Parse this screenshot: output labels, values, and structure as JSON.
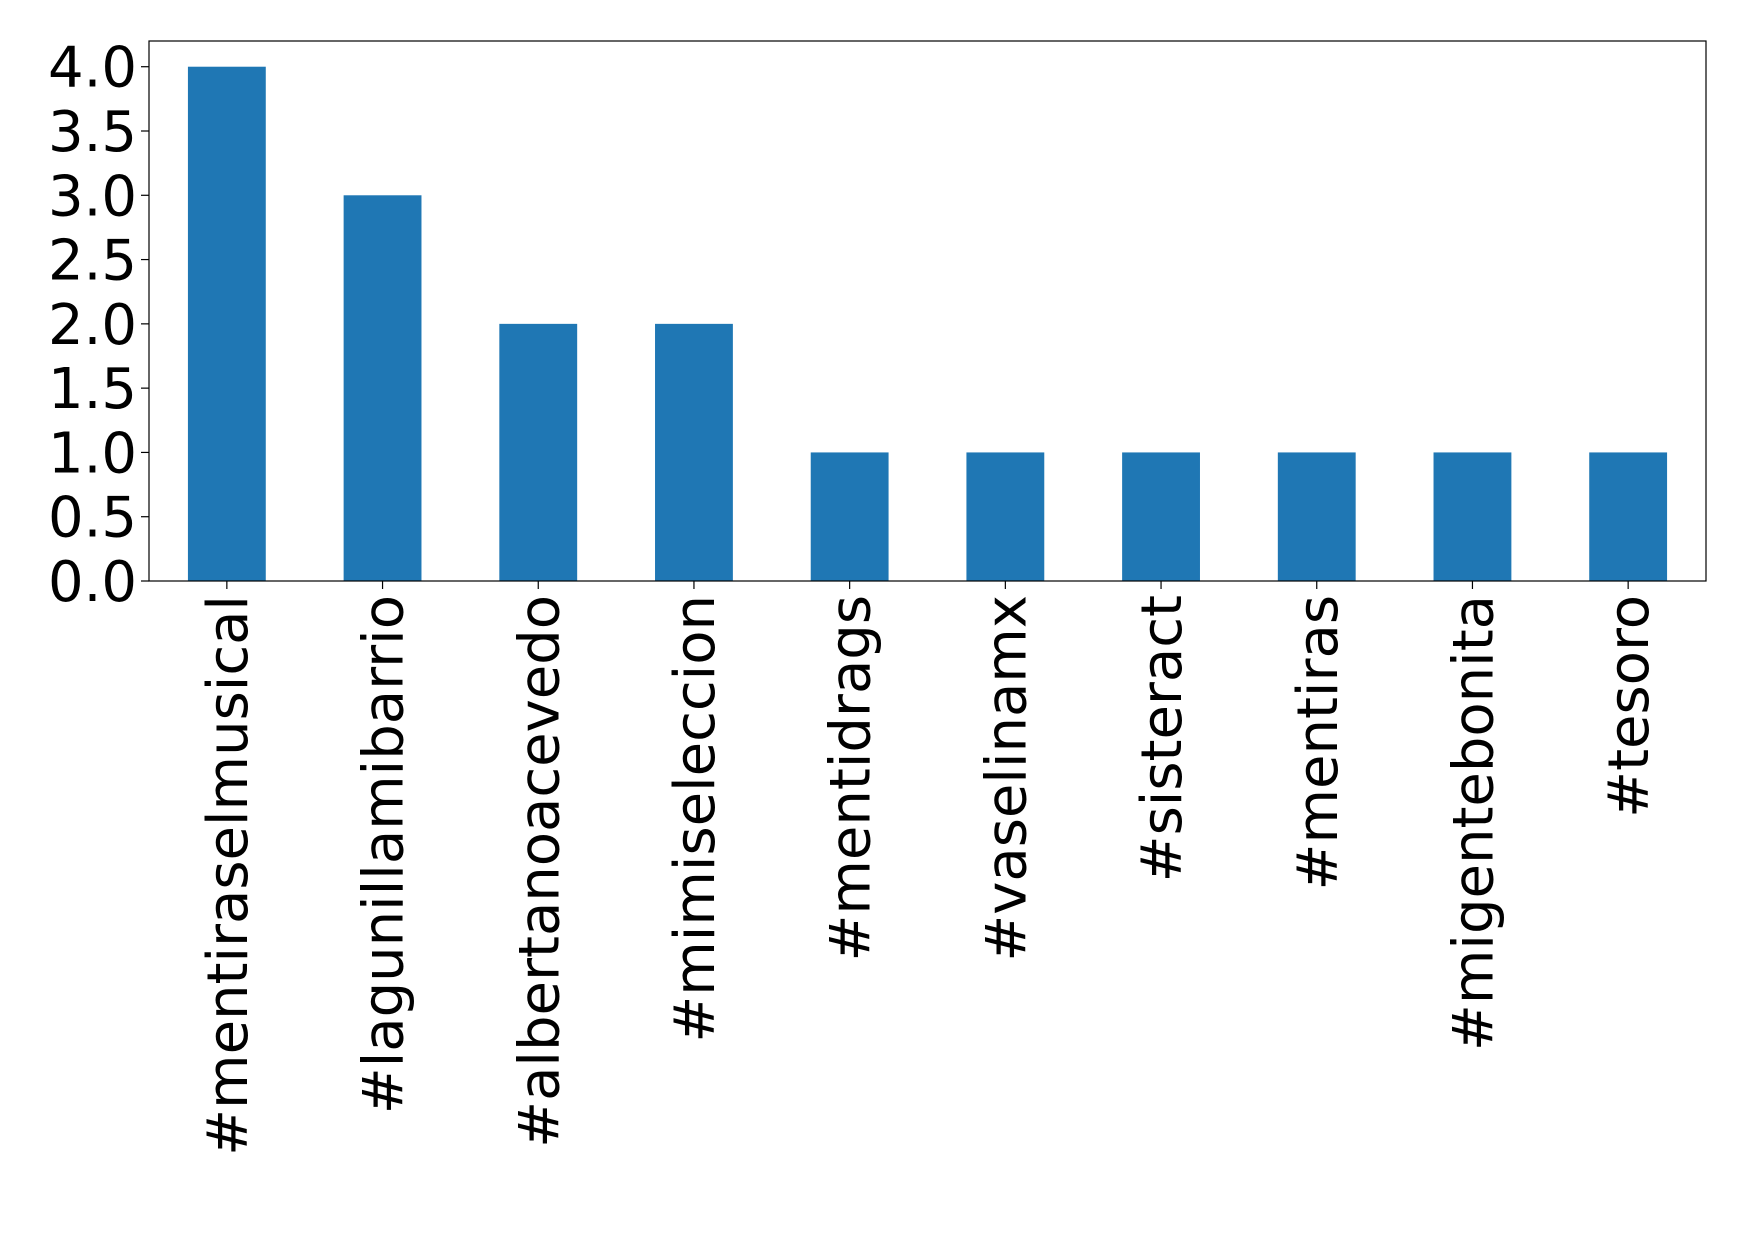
{
  "chart_data": {
    "type": "bar",
    "categories": [
      "#mentiraselmusical",
      "#lagunillamibarrio",
      "#albertanoacevedo",
      "#mimiseleccion",
      "#mentidrags",
      "#vaselinamx",
      "#sisteract",
      "#mentiras",
      "#migentebonita",
      "#tesoro"
    ],
    "values": [
      4,
      3,
      2,
      2,
      1,
      1,
      1,
      1,
      1,
      1
    ],
    "color": "#1f77b4",
    "ylim": [
      0,
      4.2
    ],
    "yticks": [
      {
        "value": 0,
        "label": "0.0"
      },
      0.5,
      {
        "value": 1,
        "label": "1.0"
      },
      1.5,
      {
        "value": 2,
        "label": "2.0"
      },
      2.5,
      {
        "value": 3,
        "label": "3.0"
      },
      3.5,
      {
        "value": 4,
        "label": "4.0"
      }
    ],
    "grid": false
  }
}
